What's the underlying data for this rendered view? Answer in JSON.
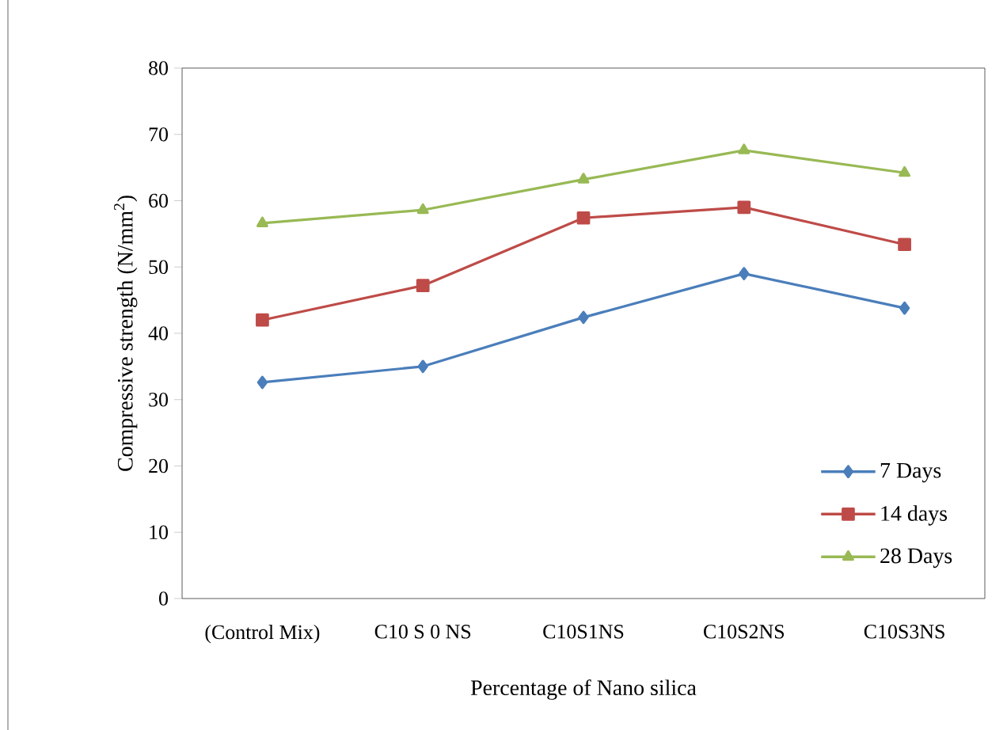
{
  "chart_data": {
    "type": "line",
    "xlabel": "Percentage of Nano silica",
    "ylabel": "Compressive strength (N/mm$^{2}$)",
    "categories": [
      "(Control Mix)",
      "C10 S 0 NS",
      "C10S1NS",
      "C10S2NS",
      "C10S3NS"
    ],
    "series": [
      {
        "name": "7 Days",
        "color": "#4a7ebb",
        "marker": "diamond",
        "values": [
          32.6,
          35.0,
          42.4,
          49.0,
          43.8
        ]
      },
      {
        "name": "14 days",
        "color": "#be4b48",
        "marker": "square",
        "values": [
          42.0,
          47.2,
          57.4,
          59.0,
          53.4
        ]
      },
      {
        "name": "28 Days",
        "color": "#98b954",
        "marker": "triangle",
        "values": [
          56.6,
          58.6,
          63.2,
          67.6,
          64.2
        ]
      }
    ],
    "ylim": [
      0,
      80
    ],
    "yticks": [
      0,
      10,
      20,
      30,
      40,
      50,
      60,
      70,
      80
    ],
    "grid": false,
    "legend": "bottom right",
    "line_style": "solid"
  }
}
